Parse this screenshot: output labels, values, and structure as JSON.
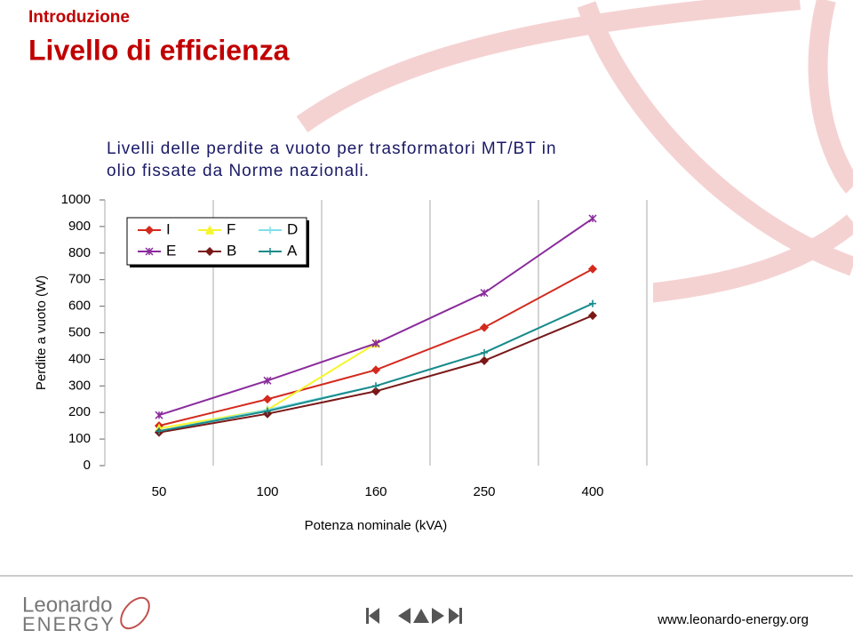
{
  "slide": {
    "section": "Introduzione",
    "title": "Livello di efficienza",
    "text": [
      "Livelli delle perdite a vuoto per trasformatori MT/BT in",
      "olio fissate da Norme nazionali."
    ],
    "logo": [
      "Leonardo",
      "ENERGY"
    ],
    "url": "www.leonardo-energy.org"
  },
  "chart_data": {
    "type": "line",
    "categories": [
      "50",
      "100",
      "160",
      "250",
      "400"
    ],
    "x_label": "Potenza nominale (kVA)",
    "y_label": "Perdite a vuoto (W)",
    "ylim": [
      0,
      1000
    ],
    "yticks": [
      0,
      100,
      200,
      300,
      400,
      500,
      600,
      700,
      800,
      900,
      1000
    ],
    "grid": "x",
    "legend": "upper left",
    "series": [
      {
        "name": "I",
        "color": "#d42a1e",
        "marker": "diamond",
        "values": [
          150,
          250,
          360,
          520,
          740
        ]
      },
      {
        "name": "F",
        "color": "#f5f52a",
        "marker": "triangle",
        "values": [
          140,
          210,
          460,
          null,
          null
        ]
      },
      {
        "name": "D",
        "color": "#7fe0e8",
        "marker": "plus",
        "values": [
          130,
          210,
          300,
          425,
          610
        ]
      },
      {
        "name": "E",
        "color": "#8a2b9c",
        "marker": "star",
        "values": [
          190,
          320,
          460,
          650,
          930
        ]
      },
      {
        "name": "B",
        "color": "#7a1818",
        "marker": "diamond",
        "values": [
          125,
          195,
          280,
          395,
          565
        ]
      },
      {
        "name": "A",
        "color": "#1a8a8a",
        "marker": "plus",
        "values": [
          130,
          205,
          300,
          425,
          610
        ]
      }
    ]
  }
}
